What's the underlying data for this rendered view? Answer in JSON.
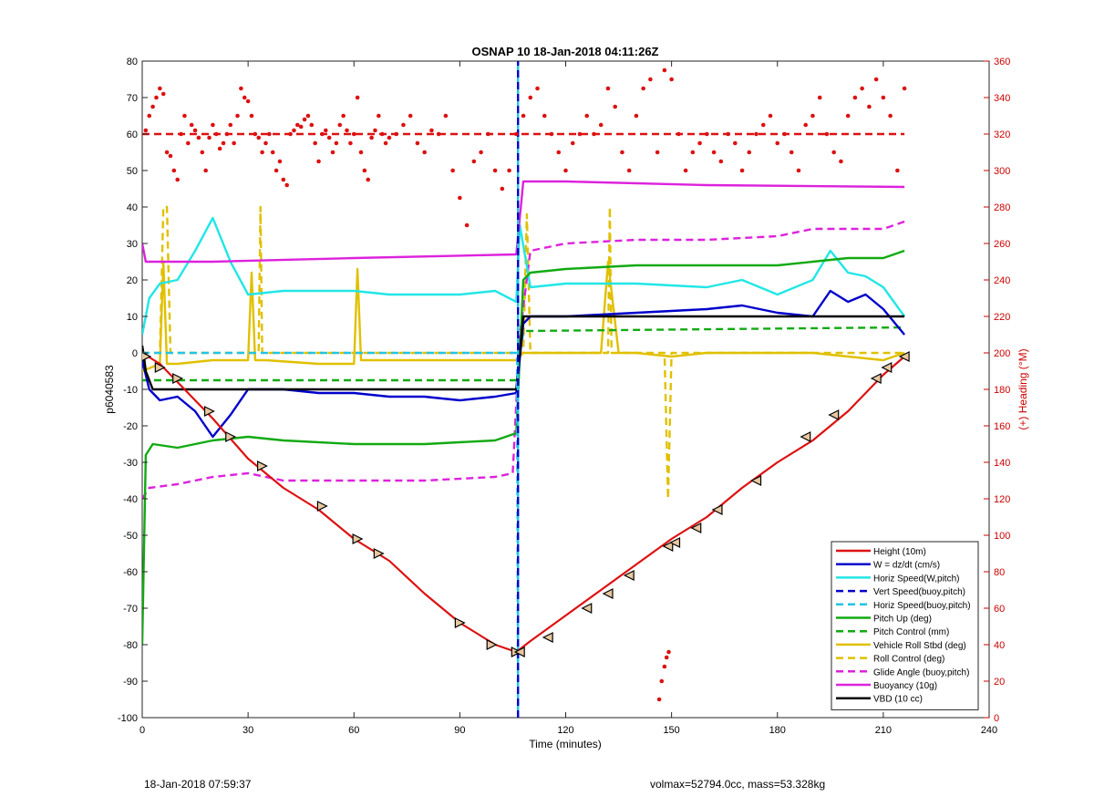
{
  "figure": {
    "footer_left": "18-Jan-2018 07:59:37",
    "footer_right": "volmax=52794.0cc, mass=53.328kg"
  },
  "chart_data": {
    "type": "line",
    "title": "OSNAP 10 18-Jan-2018 04:11:26Z",
    "xlabel": "Time (minutes)",
    "ylabel": "p6040583",
    "y2label": "(+) Heading (°M)",
    "xlim": [
      0,
      240
    ],
    "ylim": [
      -100,
      80
    ],
    "y2lim": [
      0,
      360
    ],
    "xticks": [
      0,
      30,
      60,
      90,
      120,
      150,
      180,
      210,
      240
    ],
    "yticks": [
      -100,
      -90,
      -80,
      -70,
      -60,
      -50,
      -40,
      -30,
      -20,
      -10,
      0,
      10,
      20,
      30,
      40,
      50,
      60,
      70,
      80
    ],
    "y2ticks": [
      0,
      20,
      40,
      60,
      80,
      100,
      120,
      140,
      160,
      180,
      200,
      220,
      240,
      260,
      280,
      300,
      320,
      340,
      360
    ],
    "grid": false,
    "legend_position": "bottom-right",
    "colors": {
      "height": "#dd1111",
      "w": "#0000cc",
      "horiz": "#22e6e6",
      "vert_buoy": "#0000cc",
      "horiz_buoy": "#22c4e6",
      "pitch_up": "#11aa11",
      "pitch_ctrl": "#11aa11",
      "roll": "#e0c000",
      "roll_ctrl": "#e0c000",
      "glide": "#dd22dd",
      "buoyancy": "#dd22dd",
      "vbd": "#000000",
      "heading": "#dd1111",
      "right_axis": "#cc0000"
    },
    "series": [
      {
        "key": "height",
        "name": "Height (10m)",
        "style": "solid",
        "axis": "left",
        "x": [
          0,
          5,
          10,
          20,
          30,
          40,
          50,
          60,
          70,
          80,
          90,
          100,
          106,
          110,
          120,
          130,
          140,
          150,
          160,
          170,
          180,
          190,
          200,
          210,
          216
        ],
        "y": [
          0,
          -3,
          -8,
          -18,
          -29,
          -37,
          -43,
          -51,
          -57,
          -66,
          -74,
          -80,
          -82,
          -79,
          -72,
          -65,
          -58,
          -51,
          -45,
          -37,
          -30,
          -24,
          -16,
          -6,
          -1
        ]
      },
      {
        "key": "w",
        "name": "W = dz/dt (cm/s)",
        "style": "solid",
        "axis": "left",
        "x": [
          0,
          2,
          5,
          10,
          15,
          20,
          25,
          30,
          40,
          50,
          60,
          70,
          80,
          90,
          100,
          106,
          108,
          110,
          120,
          140,
          160,
          170,
          180,
          190,
          195,
          200,
          205,
          210,
          216
        ],
        "y": [
          -2,
          -10,
          -13,
          -12,
          -16,
          -23,
          -17,
          -10,
          -10,
          -11,
          -11,
          -12,
          -12,
          -13,
          -12,
          -11,
          8,
          10,
          10,
          11,
          12,
          13,
          11,
          10,
          17,
          14,
          16,
          12,
          5
        ]
      },
      {
        "key": "horiz",
        "name": "Horiz Speed(W,pitch)",
        "style": "solid",
        "axis": "left",
        "x": [
          0,
          2,
          5,
          10,
          15,
          20,
          25,
          30,
          40,
          50,
          60,
          70,
          80,
          90,
          100,
          106,
          107,
          110,
          120,
          140,
          160,
          170,
          180,
          190,
          195,
          200,
          205,
          210,
          216
        ],
        "y": [
          5,
          15,
          19,
          20,
          28,
          37,
          25,
          16,
          17,
          17,
          17,
          16,
          16,
          16,
          17,
          14,
          35,
          18,
          19,
          19,
          18,
          20,
          16,
          20,
          28,
          22,
          21,
          18,
          10
        ]
      },
      {
        "key": "vert_buoy",
        "name": "Vert Speed(buoy,pitch)",
        "style": "dashed",
        "axis": "left",
        "x": [
          106.5,
          106.5
        ],
        "y": [
          -100,
          80
        ]
      },
      {
        "key": "horiz_buoy",
        "name": "Horiz Speed(buoy,pitch)",
        "style": "dashed",
        "axis": "left",
        "x": [
          0,
          106,
          106.2,
          106.5,
          106.5
        ],
        "y": [
          0,
          0,
          0,
          -100,
          80
        ]
      },
      {
        "key": "pitch_up",
        "name": "Pitch Up (deg)",
        "style": "solid",
        "axis": "left",
        "x": [
          0,
          1,
          3,
          10,
          20,
          30,
          40,
          60,
          80,
          100,
          106,
          108,
          110,
          120,
          140,
          160,
          180,
          190,
          200,
          210,
          216
        ],
        "y": [
          -80,
          -28,
          -25,
          -26,
          -24,
          -23,
          -24,
          -25,
          -25,
          -24,
          -22,
          20,
          22,
          23,
          24,
          24,
          24,
          25,
          26,
          26,
          28
        ]
      },
      {
        "key": "pitch_ctrl",
        "name": "Pitch Control (mm)",
        "style": "dashed",
        "axis": "left",
        "x": [
          0,
          106,
          108,
          216
        ],
        "y": [
          -7.5,
          -7.5,
          6,
          7
        ]
      },
      {
        "key": "roll",
        "name": "Vehicle Roll Stbd (deg)",
        "style": "solid",
        "axis": "left",
        "x": [
          0,
          5,
          6,
          7,
          10,
          20,
          30,
          31,
          32,
          35,
          50,
          60,
          61,
          62,
          65,
          80,
          90,
          100,
          106,
          108,
          110,
          120,
          130,
          132,
          135,
          140,
          150,
          160,
          170,
          180,
          190,
          200,
          210,
          216
        ],
        "y": [
          -5,
          -3,
          25,
          -3,
          -3,
          -2,
          -2,
          22,
          -2,
          -2,
          -3,
          -3,
          23,
          -2,
          -2,
          -2,
          -2,
          -2,
          -2,
          0,
          0,
          0,
          0,
          25,
          0,
          0,
          -1,
          0,
          0,
          0,
          0,
          -1,
          -2,
          0
        ]
      },
      {
        "key": "roll_ctrl",
        "name": "Roll Control (deg)",
        "style": "dashed",
        "axis": "left",
        "x": [
          0,
          5,
          6,
          7,
          8,
          33,
          33.5,
          34,
          50,
          100,
          106,
          108,
          109,
          110,
          120,
          132,
          132.5,
          133,
          148,
          149,
          150,
          216
        ],
        "y": [
          0,
          0,
          40,
          40,
          0,
          0,
          40,
          0,
          0,
          0,
          0,
          0,
          38,
          0,
          0,
          0,
          40,
          0,
          0,
          -40,
          0,
          0
        ]
      },
      {
        "key": "glide",
        "name": "Glide Angle (buoy,pitch)",
        "style": "dashed",
        "axis": "left",
        "x": [
          0,
          2,
          10,
          20,
          30,
          40,
          60,
          80,
          100,
          105,
          107,
          110,
          120,
          140,
          160,
          180,
          190,
          200,
          210,
          216
        ],
        "y": [
          -40,
          -37,
          -36,
          -34,
          -33,
          -35,
          -35,
          -35,
          -34,
          -33,
          5,
          28,
          30,
          31,
          31,
          32,
          34,
          34,
          34,
          36
        ]
      },
      {
        "key": "buoyancy",
        "name": "Buoyancy (10g)",
        "style": "solid",
        "axis": "left",
        "x": [
          0,
          1,
          20,
          60,
          106,
          108,
          120,
          160,
          216
        ],
        "y": [
          30,
          25,
          25,
          26,
          27,
          47,
          47,
          46,
          45.5
        ]
      },
      {
        "key": "vbd",
        "name": "VBD (10 cc)",
        "style": "solid",
        "axis": "left",
        "x": [
          0,
          0.5,
          1,
          3,
          106,
          108,
          110,
          216
        ],
        "y": [
          2,
          -1,
          -5,
          -10,
          -10,
          10,
          10,
          10
        ]
      },
      {
        "key": "heading",
        "name": "",
        "style": "dashed",
        "axis": "right",
        "x": [
          0,
          216
        ],
        "y": [
          320,
          320
        ]
      }
    ],
    "heading_dots": {
      "x": [
        1,
        2,
        3,
        4,
        5,
        6,
        7,
        8,
        9,
        10,
        11,
        12,
        13,
        14,
        15,
        16,
        17,
        18,
        19,
        20,
        21,
        22,
        23,
        24,
        25,
        26,
        27,
        28,
        29,
        30,
        31,
        32,
        33,
        34,
        35,
        36,
        37,
        38,
        39,
        40,
        41,
        42,
        43,
        44,
        45,
        46,
        47,
        48,
        49,
        50,
        51,
        52,
        53,
        54,
        55,
        56,
        57,
        58,
        59,
        60,
        61,
        62,
        63,
        64,
        65,
        66,
        67,
        68,
        69,
        70,
        72,
        74,
        76,
        78,
        80,
        82,
        84,
        86,
        88,
        90,
        92,
        94,
        96,
        98,
        100,
        102,
        104,
        106,
        108,
        110,
        112,
        114,
        116,
        118,
        120,
        122,
        124,
        126,
        128,
        130,
        132,
        134,
        136,
        138,
        140,
        142,
        144,
        146,
        148,
        150,
        152,
        154,
        156,
        158,
        160,
        162,
        164,
        166,
        168,
        170,
        172,
        174,
        176,
        178,
        180,
        182,
        184,
        186,
        188,
        190,
        192,
        194,
        196,
        198,
        200,
        202,
        204,
        206,
        208,
        210,
        212,
        214,
        216,
        146.5,
        147.2,
        148,
        148.6,
        149.2
      ],
      "y": [
        322,
        330,
        335,
        340,
        345,
        342,
        310,
        308,
        300,
        295,
        320,
        330,
        315,
        325,
        322,
        318,
        310,
        300,
        318,
        325,
        320,
        312,
        315,
        320,
        325,
        315,
        330,
        345,
        340,
        338,
        330,
        320,
        318,
        310,
        315,
        320,
        310,
        300,
        305,
        295,
        292,
        320,
        322,
        325,
        324,
        328,
        330,
        325,
        315,
        305,
        320,
        322,
        318,
        310,
        315,
        325,
        330,
        322,
        315,
        320,
        340,
        310,
        300,
        295,
        318,
        322,
        330,
        320,
        315,
        318,
        320,
        325,
        330,
        315,
        310,
        322,
        320,
        330,
        300,
        285,
        270,
        305,
        310,
        320,
        300,
        290,
        300,
        320,
        330,
        340,
        345,
        330,
        320,
        310,
        300,
        315,
        320,
        330,
        320,
        325,
        345,
        335,
        310,
        300,
        330,
        345,
        350,
        310,
        355,
        350,
        320,
        300,
        310,
        315,
        320,
        310,
        305,
        320,
        315,
        300,
        310,
        320,
        325,
        330,
        315,
        320,
        310,
        300,
        325,
        330,
        340,
        320,
        310,
        305,
        330,
        340,
        345,
        335,
        350,
        340,
        330,
        300,
        345,
        10,
        20,
        28,
        33,
        36
      ]
    },
    "markers": {
      "down": {
        "x": [
          0,
          1,
          5,
          10,
          19,
          25,
          34,
          51,
          61,
          67,
          90,
          99,
          106
        ],
        "y": [
          -0.5,
          -1,
          -4,
          -7,
          -16,
          -23,
          -31,
          -42,
          -51,
          -55,
          -74,
          -80,
          -82
        ]
      },
      "up": {
        "x": [
          107,
          115,
          126,
          132,
          138,
          149,
          151,
          157,
          163,
          174,
          188,
          196,
          208,
          211,
          216
        ],
        "y": [
          -82,
          -78,
          -70,
          -66,
          -61,
          -53,
          -52,
          -48,
          -43,
          -35,
          -23,
          -17,
          -7,
          -4,
          -1
        ]
      }
    }
  }
}
